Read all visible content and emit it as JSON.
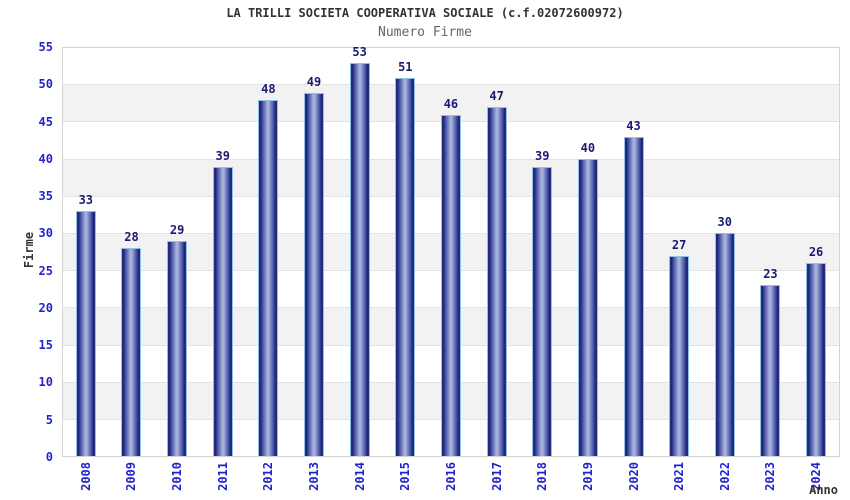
{
  "chart_data": {
    "type": "bar",
    "title": "LA TRILLI SOCIETA COOPERATIVA SOCIALE (c.f.02072600972)",
    "subtitle": "Numero Firme",
    "xlabel": "Anno",
    "ylabel": "Firme",
    "categories": [
      "2008",
      "2009",
      "2010",
      "2011",
      "2012",
      "2013",
      "2014",
      "2015",
      "2016",
      "2017",
      "2018",
      "2019",
      "2020",
      "2021",
      "2022",
      "2023",
      "2024"
    ],
    "values": [
      33,
      28,
      29,
      39,
      48,
      49,
      53,
      51,
      46,
      47,
      39,
      40,
      43,
      27,
      30,
      23,
      26
    ],
    "ylim": [
      0,
      55
    ],
    "ytick_step": 5,
    "grid": "horizontal gridlines with alternating white/gray bands",
    "legend": "none",
    "bar_value_labels_shown": true
  },
  "colors": {
    "bar_gradient_edge": "#1a2166",
    "bar_gradient_mid": "#6a76bb",
    "bar_gradient_center": "#a9b2dc",
    "bar_outline": "#8fc0e8",
    "value_label": "#1a1a70",
    "axis_tick_text": "#2323cc",
    "band_gray": "#f2f2f2",
    "gridline": "#e3e3e3",
    "plot_border": "#d4d4d4",
    "title_text": "#333333",
    "subtitle_text": "#666666",
    "axis_label_text": "#333333",
    "background": "#ffffff"
  }
}
